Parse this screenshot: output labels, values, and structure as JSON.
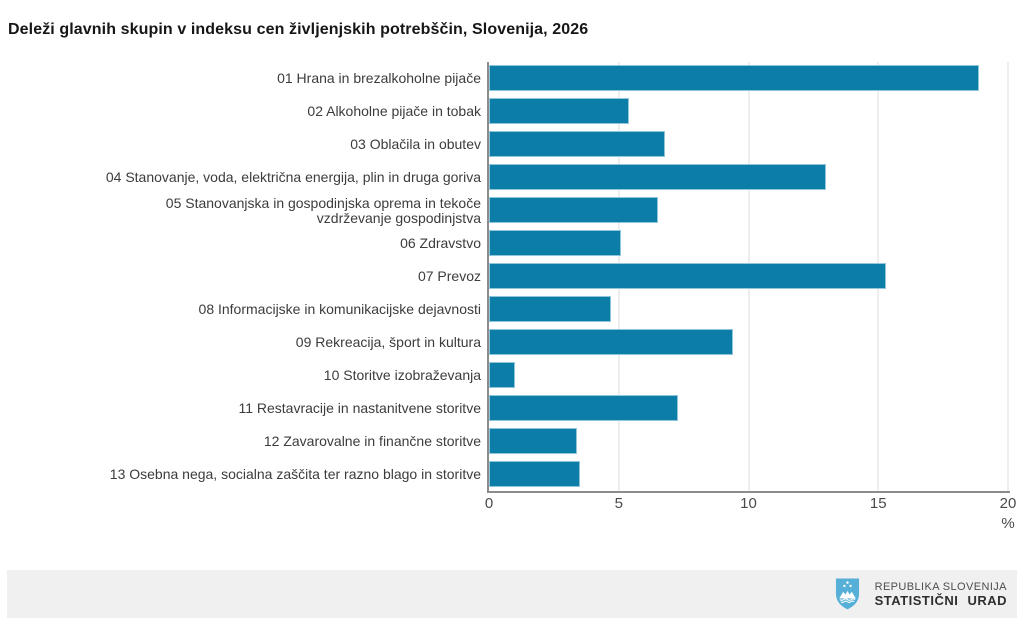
{
  "title": "Deleži glavnih skupin v indeksu cen življenjskih potrebščin, Slovenija, 2026",
  "chart_data": {
    "type": "bar",
    "orientation": "horizontal",
    "title": "Deleži glavnih skupin v indeksu cen življenjskih potrebščin, Slovenija, 2026",
    "categories": [
      "01 Hrana in brezalkoholne pijače",
      "02 Alkoholne pijače in tobak",
      "03 Oblačila in obutev",
      "04 Stanovanje, voda, električna energija, plin in druga goriva",
      "05 Stanovanjska in gospodinjska oprema in tekoče\nvzdrževanje gospodinjstva",
      "06 Zdravstvo",
      "07 Prevoz",
      "08 Informacijske in komunikacijske dejavnosti",
      "09 Rekreacija, šport in kultura",
      "10 Storitve izobraževanja",
      "11 Restavracije in nastanitvene storitve",
      "12 Zavarovalne in finančne storitve",
      "13 Osebna nega, socialna zaščita ter razno blago in storitve"
    ],
    "values": [
      18.9,
      5.4,
      6.8,
      13.0,
      6.5,
      5.1,
      15.3,
      4.7,
      9.4,
      1.0,
      7.3,
      3.4,
      3.5
    ],
    "xlabel": "%",
    "ylabel": "",
    "xlim": [
      0,
      20
    ],
    "xticks": [
      0,
      5,
      10,
      15,
      20
    ],
    "grid": "vertical",
    "legend": "none",
    "bar_color": "#0c7da6",
    "bar_border_color": "#8fc6db",
    "grid_color": "#dcdcdc",
    "axis_color": "#8c8c8c"
  },
  "footer": {
    "org_line1": "REPUBLIKA SLOVENIJA",
    "org_line2": "STATISTIČNI URAD",
    "logo": "slovenia-coat-of-arms",
    "band_color": "#f0f0f0",
    "logo_color": "#56afd7"
  }
}
